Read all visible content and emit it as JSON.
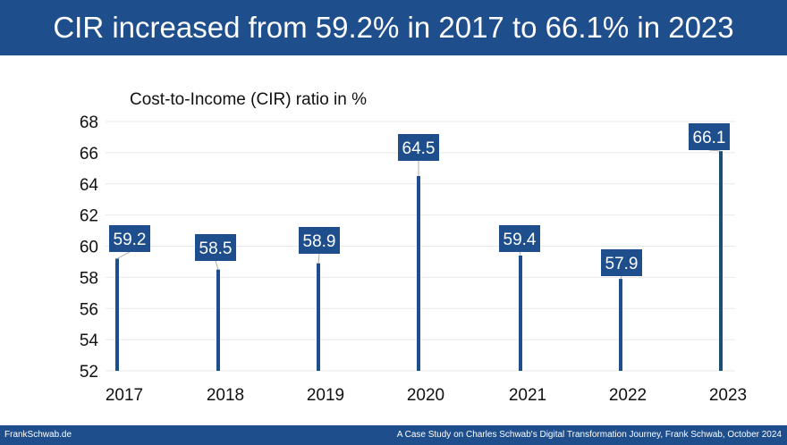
{
  "header": {
    "title": "CIR increased from 59.2% in 2017 to 66.1% in 2023"
  },
  "footer": {
    "left": "FrankSchwab.de",
    "right": "A Case Study on Charles Schwab's Digital Transformation Journey, Frank Schwab, October 2024"
  },
  "colors": {
    "brand": "#1f4e8c",
    "bar": "#1f4e8c",
    "bar_last": "#1b4f72",
    "label_bg": "#1f4e8c",
    "grid": "#e8e8e8"
  },
  "chart_data": {
    "type": "bar",
    "title": "Cost-to-Income (CIR) ratio in %",
    "xlabel": "",
    "ylabel": "",
    "categories": [
      "2017",
      "2018",
      "2019",
      "2020",
      "2021",
      "2022",
      "2023"
    ],
    "values": [
      59.2,
      58.5,
      58.9,
      64.5,
      59.4,
      57.9,
      66.1
    ],
    "data_labels": [
      "59.2",
      "58.5",
      "58.9",
      "64.5",
      "59.4",
      "57.9",
      "66.1"
    ],
    "yticks": [
      "52",
      "54",
      "56",
      "58",
      "60",
      "62",
      "64",
      "66",
      "68"
    ],
    "ylim": [
      52,
      68
    ],
    "grid": true,
    "legend": "none"
  }
}
